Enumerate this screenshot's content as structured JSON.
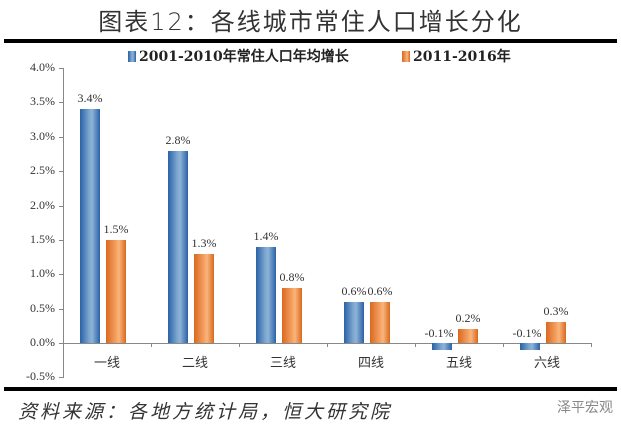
{
  "header": {
    "title": "图表12：各线城市常住人口增长分化"
  },
  "legend": {
    "series1": "2001-2010年常住人口年均增长",
    "series2": "2011-2016年"
  },
  "y_ticks": [
    "4.0%",
    "3.5%",
    "3.0%",
    "2.5%",
    "2.0%",
    "1.5%",
    "1.0%",
    "0.5%",
    "0.0%",
    "-0.5%"
  ],
  "categories": [
    "一线",
    "二线",
    "三线",
    "四线",
    "五线",
    "六线"
  ],
  "labels1": [
    "3.4%",
    "2.8%",
    "1.4%",
    "0.6%",
    "-0.1%",
    "-0.1%"
  ],
  "labels2": [
    "1.5%",
    "1.3%",
    "0.8%",
    "0.6%",
    "0.2%",
    "0.3%"
  ],
  "footer": {
    "source": "资料来源：各地方统计局，恒大研究院",
    "watermark": "泽平宏观"
  },
  "colors": {
    "series1": "#2e6db4",
    "series2": "#ed7d31"
  },
  "chart_data": {
    "type": "bar",
    "title": "图表12：各线城市常住人口增长分化",
    "categories": [
      "一线",
      "二线",
      "三线",
      "四线",
      "五线",
      "六线"
    ],
    "series": [
      {
        "name": "2001-2010年常住人口年均增长",
        "values": [
          3.4,
          2.8,
          1.4,
          0.6,
          -0.1,
          -0.1
        ]
      },
      {
        "name": "2011-2016年",
        "values": [
          1.5,
          1.3,
          0.8,
          0.6,
          0.2,
          0.3
        ]
      }
    ],
    "xlabel": "",
    "ylabel": "",
    "ylim": [
      -0.5,
      4.0
    ],
    "y_tick_format": "percent",
    "legend_position": "top",
    "grid": false,
    "source": "资料来源：各地方统计局，恒大研究院"
  }
}
